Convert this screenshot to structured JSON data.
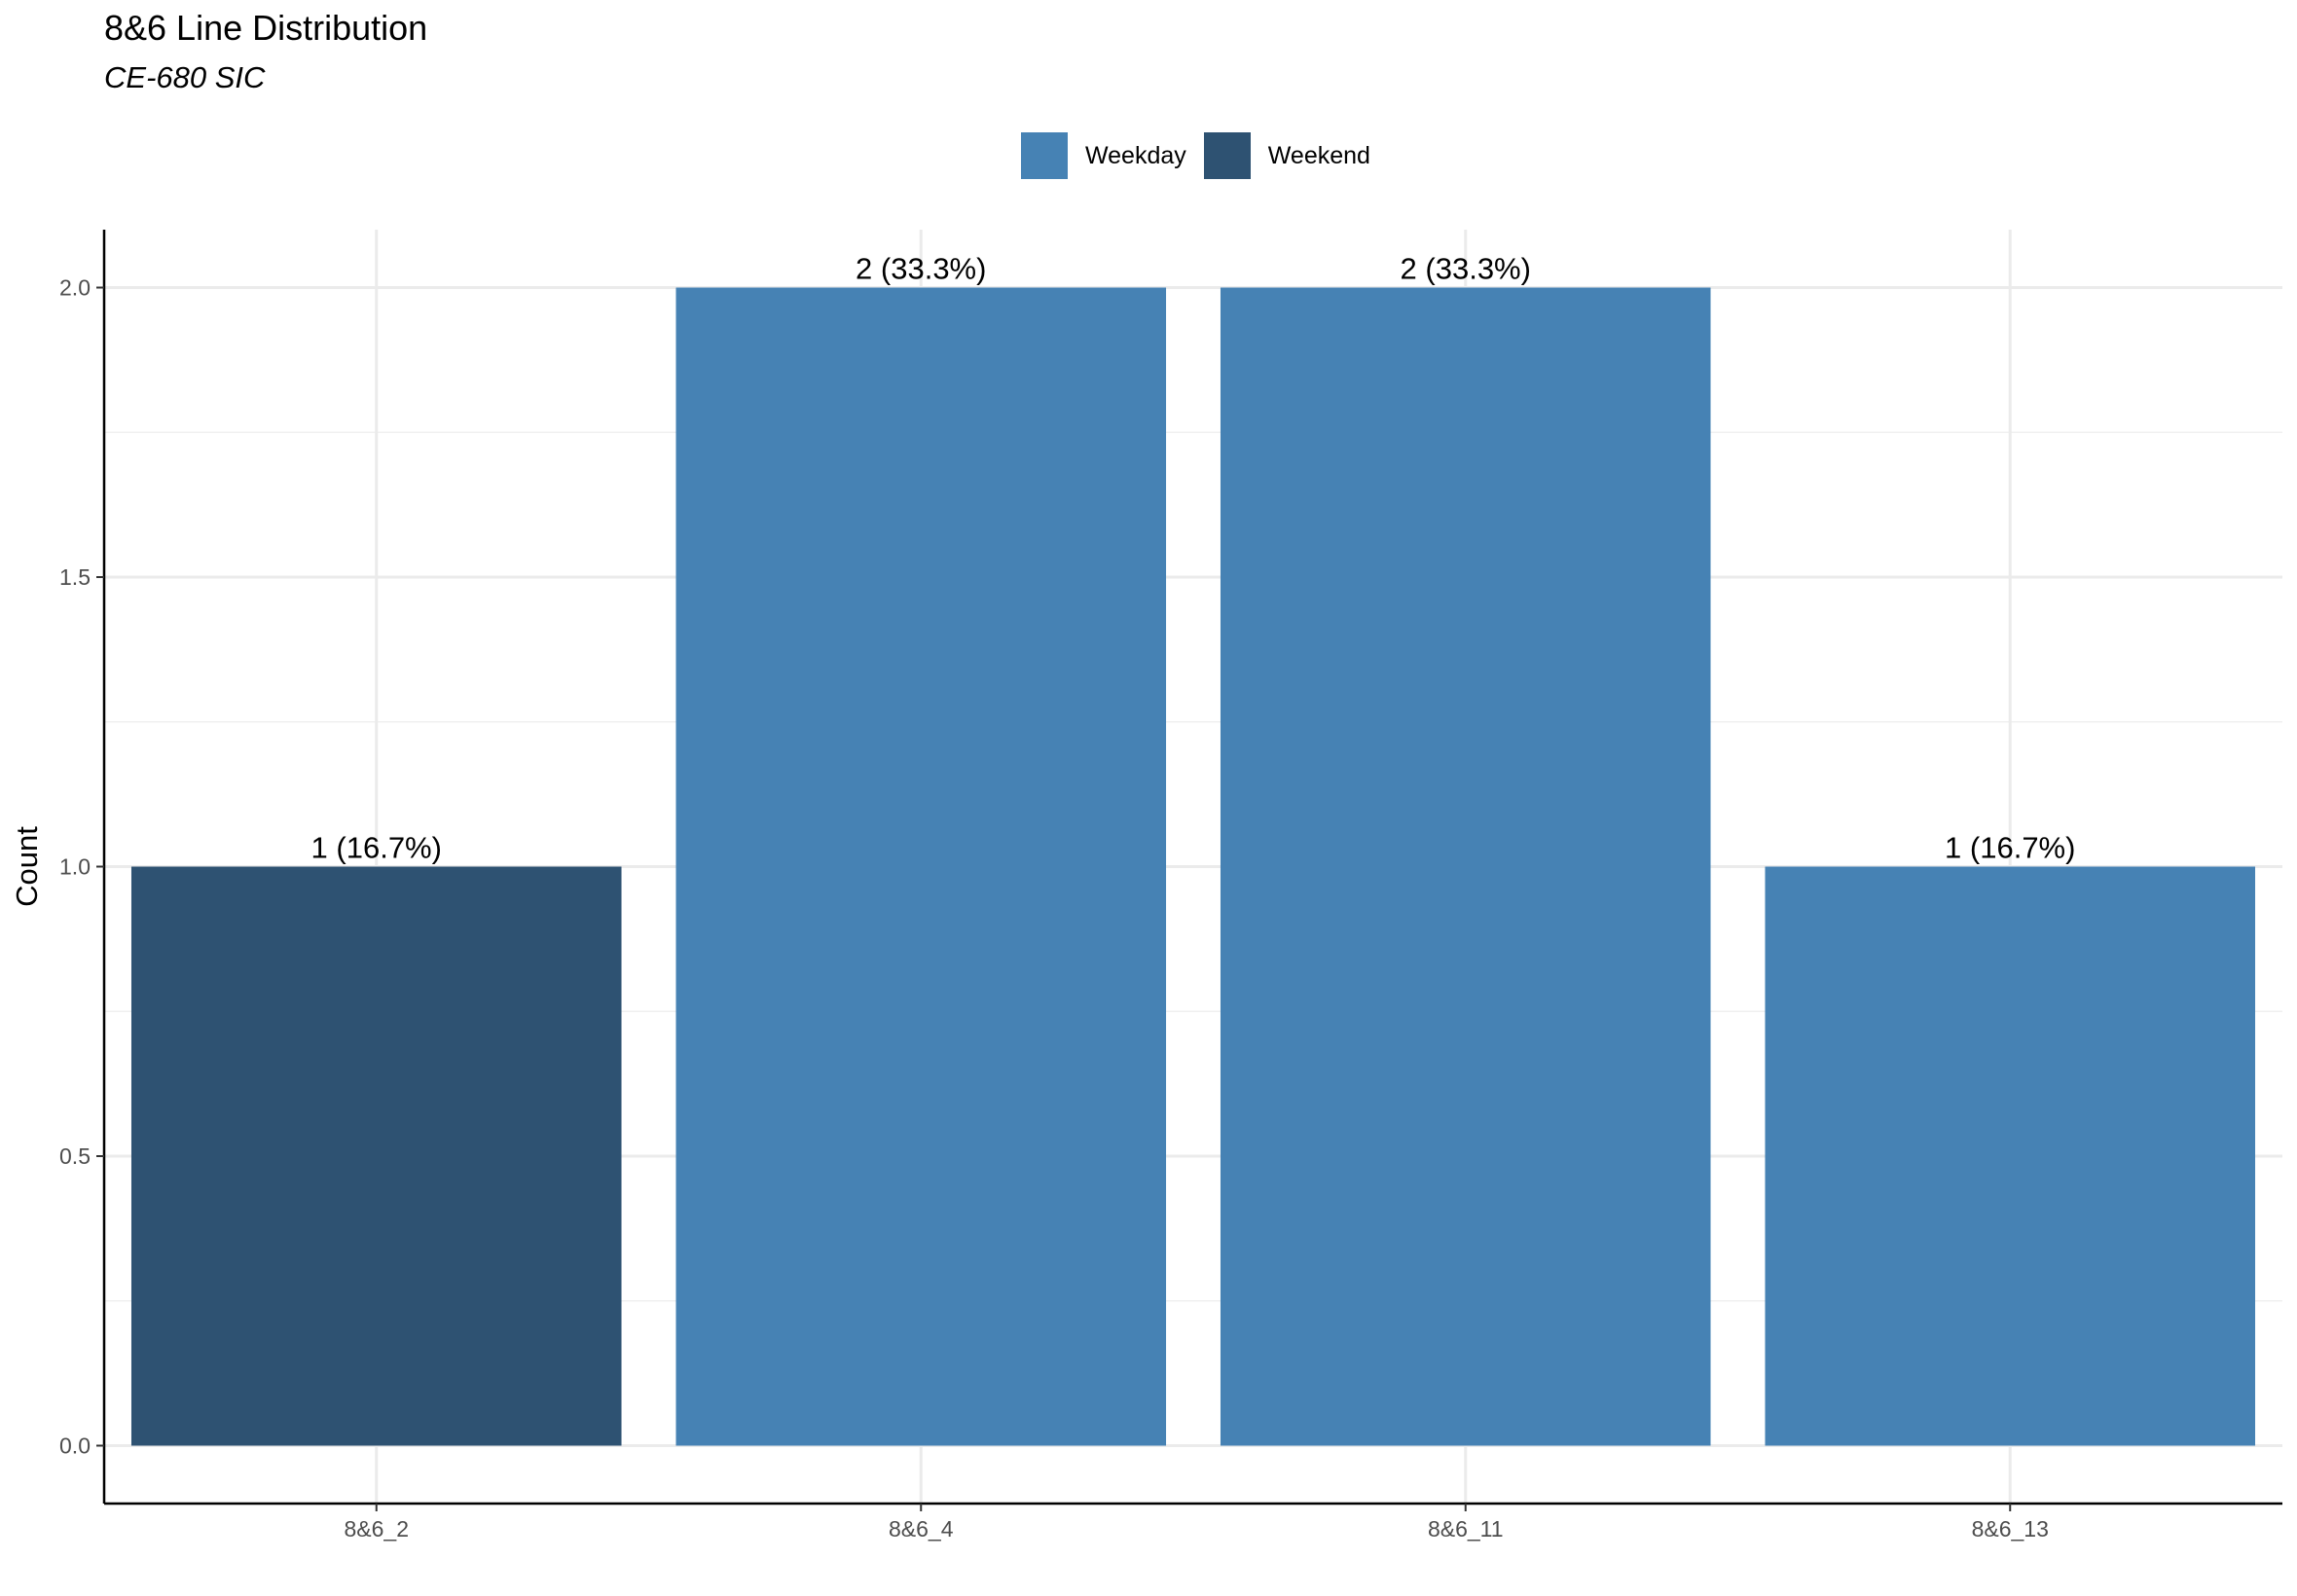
{
  "chart_data": {
    "type": "bar",
    "title": "8&6 Line Distribution",
    "subtitle": "CE-680 SIC",
    "xlabel": "",
    "ylabel": "Count",
    "categories": [
      "8&6_2",
      "8&6_4",
      "8&6_11",
      "8&6_13"
    ],
    "values": [
      1,
      2,
      2,
      1
    ],
    "groups": [
      "Weekend",
      "Weekday",
      "Weekday",
      "Weekday"
    ],
    "data_labels": [
      "1 (16.7%)",
      "2 (33.3%)",
      "2 (33.3%)",
      "1 (16.7%)"
    ],
    "ylim": [
      -0.1,
      2.1
    ],
    "yticks": [
      0.0,
      0.5,
      1.0,
      1.5,
      2.0
    ],
    "ytick_labels": [
      "0.0",
      "0.5",
      "1.0",
      "1.5",
      "2.0"
    ],
    "grid": true,
    "legend_position": "top",
    "legend": [
      {
        "label": "Weekday",
        "color": "#4682B4"
      },
      {
        "label": "Weekend",
        "color": "#2E5272"
      }
    ]
  }
}
